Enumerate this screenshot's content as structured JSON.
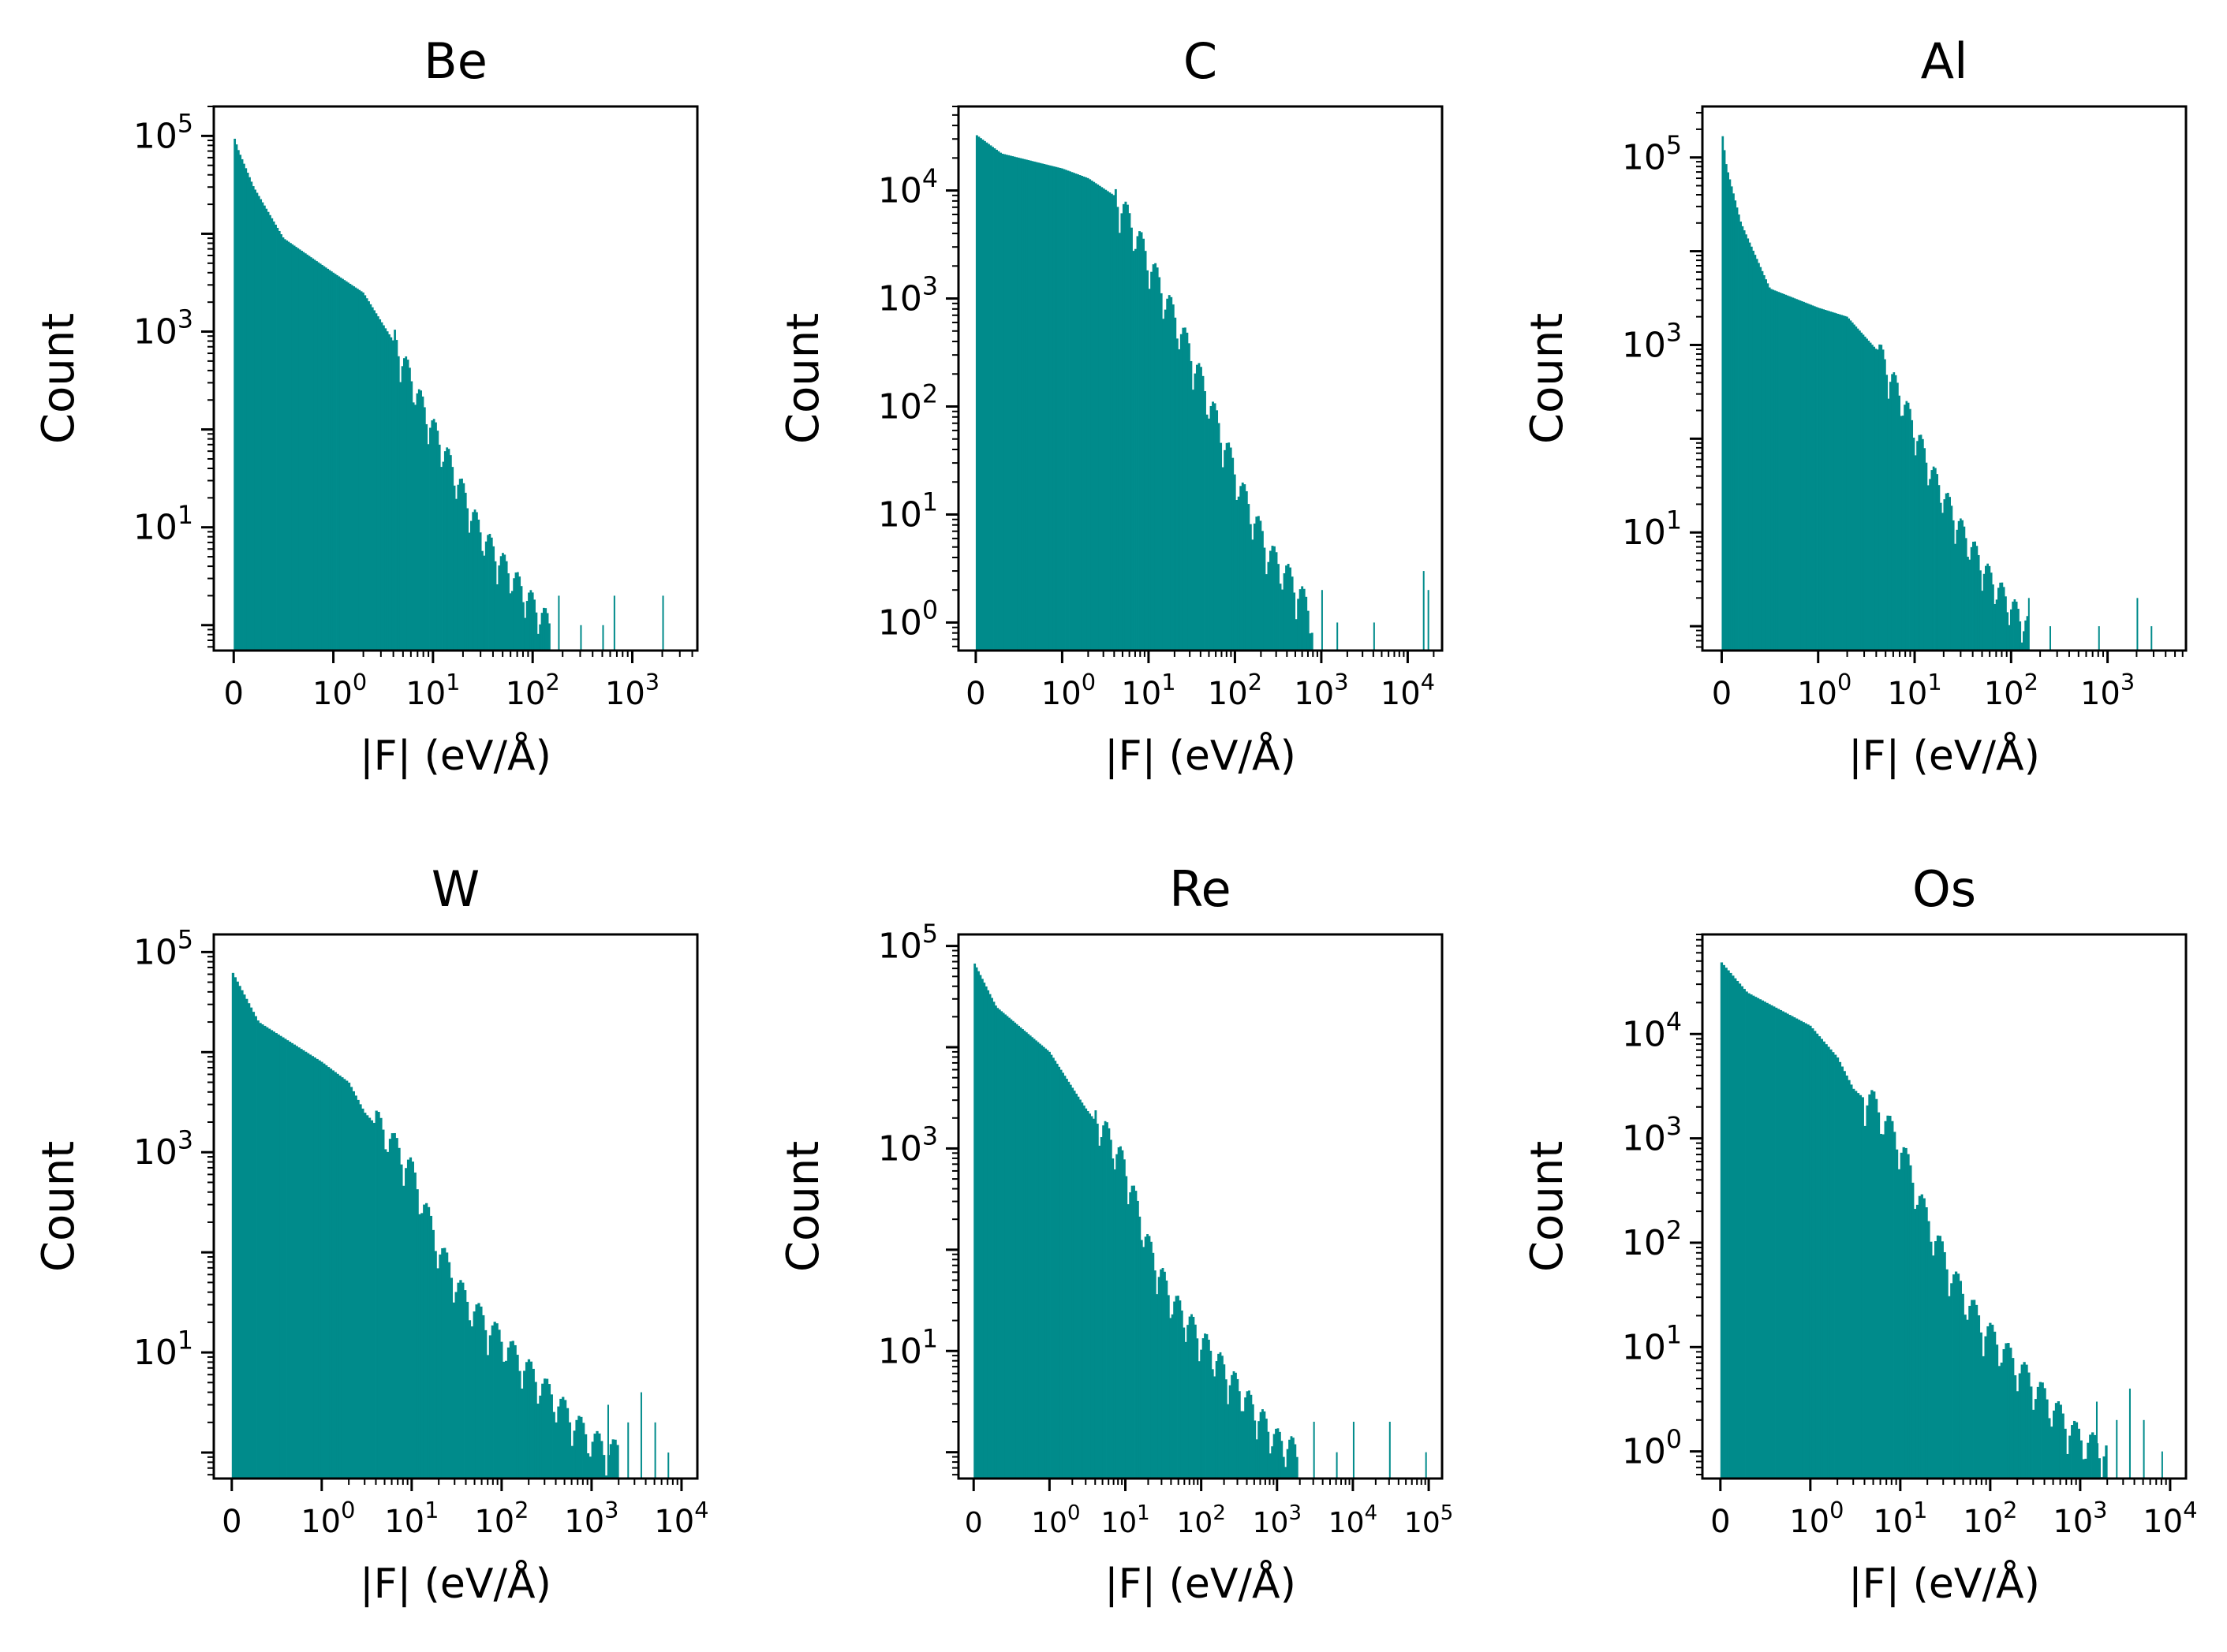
{
  "figure": {
    "bar_color": "#008b8b",
    "axis_color": "#000000"
  },
  "chart_data": [
    {
      "type": "bar",
      "title": "Be",
      "xlabel": "|F| (eV/Å)",
      "ylabel": "Count",
      "xscale": "symlog",
      "yscale": "log",
      "xlim": [
        -0.2,
        4500
      ],
      "ylim": [
        0.55,
        200000
      ],
      "xticks": [
        {
          "v": 0,
          "base": "0",
          "exp": ""
        },
        {
          "v": 1,
          "base": "10",
          "exp": "0"
        },
        {
          "v": 10,
          "base": "10",
          "exp": "1"
        },
        {
          "v": 100,
          "base": "10",
          "exp": "2"
        },
        {
          "v": 1000,
          "base": "10",
          "exp": "3"
        }
      ],
      "yticks": [
        {
          "v": 10,
          "base": "10",
          "exp": "1"
        },
        {
          "v": 1000,
          "base": "10",
          "exp": "3"
        },
        {
          "v": 100000,
          "base": "10",
          "exp": "5"
        }
      ],
      "profile": [
        [
          0,
          100000
        ],
        [
          0.05,
          70000
        ],
        [
          0.2,
          30000
        ],
        [
          0.5,
          9000
        ],
        [
          1,
          4000
        ],
        [
          2,
          2500
        ],
        [
          4,
          800
        ],
        [
          8,
          150
        ],
        [
          15,
          40
        ],
        [
          30,
          8
        ],
        [
          60,
          3
        ],
        [
          100,
          1.5
        ],
        [
          150,
          0.9
        ]
      ],
      "outliers": [
        [
          180,
          2
        ],
        [
          300,
          1
        ],
        [
          500,
          1
        ],
        [
          650,
          2
        ],
        [
          2000,
          2
        ]
      ]
    },
    {
      "type": "bar",
      "title": "C",
      "xlabel": "|F| (eV/Å)",
      "ylabel": "Count",
      "xscale": "symlog",
      "yscale": "log",
      "xlim": [
        -0.2,
        25000
      ],
      "ylim": [
        0.55,
        60000
      ],
      "xticks": [
        {
          "v": 0,
          "base": "0",
          "exp": ""
        },
        {
          "v": 1,
          "base": "10",
          "exp": "0"
        },
        {
          "v": 10,
          "base": "10",
          "exp": "1"
        },
        {
          "v": 100,
          "base": "10",
          "exp": "2"
        },
        {
          "v": 1000,
          "base": "10",
          "exp": "3"
        },
        {
          "v": 10000,
          "base": "10",
          "exp": "4"
        }
      ],
      "yticks": [
        {
          "v": 1,
          "base": "10",
          "exp": "0"
        },
        {
          "v": 10,
          "base": "10",
          "exp": "1"
        },
        {
          "v": 100,
          "base": "10",
          "exp": "2"
        },
        {
          "v": 1000,
          "base": "10",
          "exp": "3"
        },
        {
          "v": 10000,
          "base": "10",
          "exp": "4"
        }
      ],
      "profile": [
        [
          0,
          33000
        ],
        [
          0.3,
          22000
        ],
        [
          1,
          16000
        ],
        [
          2,
          13000
        ],
        [
          4,
          9000
        ],
        [
          8,
          3000
        ],
        [
          15,
          1000
        ],
        [
          30,
          300
        ],
        [
          60,
          70
        ],
        [
          120,
          15
        ],
        [
          250,
          4
        ],
        [
          500,
          2
        ],
        [
          800,
          1
        ]
      ],
      "outliers": [
        [
          1000,
          2
        ],
        [
          1500,
          1
        ],
        [
          4000,
          1
        ],
        [
          15000,
          3
        ],
        [
          17000,
          2
        ]
      ]
    },
    {
      "type": "bar",
      "title": "Al",
      "xlabel": "|F| (eV/Å)",
      "ylabel": "Count",
      "xscale": "symlog",
      "yscale": "log",
      "xlim": [
        -0.2,
        6500
      ],
      "ylim": [
        0.55,
        350000
      ],
      "xticks": [
        {
          "v": 0,
          "base": "0",
          "exp": ""
        },
        {
          "v": 1,
          "base": "10",
          "exp": "0"
        },
        {
          "v": 10,
          "base": "10",
          "exp": "1"
        },
        {
          "v": 100,
          "base": "10",
          "exp": "2"
        },
        {
          "v": 1000,
          "base": "10",
          "exp": "3"
        }
      ],
      "yticks": [
        {
          "v": 10,
          "base": "10",
          "exp": "1"
        },
        {
          "v": 1000,
          "base": "10",
          "exp": "3"
        },
        {
          "v": 100000,
          "base": "10",
          "exp": "5"
        }
      ],
      "profile": [
        [
          0,
          200000
        ],
        [
          0.05,
          80000
        ],
        [
          0.2,
          20000
        ],
        [
          0.5,
          4000
        ],
        [
          1,
          2500
        ],
        [
          2,
          2000
        ],
        [
          4,
          900
        ],
        [
          8,
          200
        ],
        [
          15,
          40
        ],
        [
          30,
          10
        ],
        [
          60,
          3
        ],
        [
          100,
          1.5
        ],
        [
          150,
          0.9
        ]
      ],
      "outliers": [
        [
          150,
          2
        ],
        [
          250,
          1
        ],
        [
          800,
          1
        ],
        [
          2000,
          2
        ],
        [
          2800,
          1
        ]
      ]
    },
    {
      "type": "bar",
      "title": "W",
      "xlabel": "|F| (eV/Å)",
      "ylabel": "Count",
      "xscale": "symlog",
      "yscale": "log",
      "xlim": [
        -0.2,
        15000
      ],
      "ylim": [
        0.55,
        150000
      ],
      "xticks": [
        {
          "v": 0,
          "base": "0",
          "exp": ""
        },
        {
          "v": 1,
          "base": "10",
          "exp": "0"
        },
        {
          "v": 10,
          "base": "10",
          "exp": "1"
        },
        {
          "v": 100,
          "base": "10",
          "exp": "2"
        },
        {
          "v": 1000,
          "base": "10",
          "exp": "3"
        },
        {
          "v": 10000,
          "base": "10",
          "exp": "4"
        }
      ],
      "yticks": [
        {
          "v": 10,
          "base": "10",
          "exp": "1"
        },
        {
          "v": 1000,
          "base": "10",
          "exp": "3"
        },
        {
          "v": 100000,
          "base": "10",
          "exp": "5"
        }
      ],
      "profile": [
        [
          0,
          65000
        ],
        [
          0.3,
          20000
        ],
        [
          1,
          8000
        ],
        [
          2,
          5000
        ],
        [
          3,
          2500
        ],
        [
          5,
          1500
        ],
        [
          10,
          600
        ],
        [
          20,
          100
        ],
        [
          40,
          30
        ],
        [
          80,
          15
        ],
        [
          150,
          8
        ],
        [
          300,
          4
        ],
        [
          600,
          2
        ],
        [
          1000,
          1.2
        ],
        [
          2000,
          0.9
        ]
      ],
      "outliers": [
        [
          1500,
          3
        ],
        [
          2500,
          2
        ],
        [
          3500,
          4
        ],
        [
          5000,
          2
        ],
        [
          7000,
          1
        ]
      ]
    },
    {
      "type": "bar",
      "title": "Re",
      "xlabel": "|F| (eV/Å)",
      "ylabel": "Count",
      "xscale": "symlog",
      "yscale": "log",
      "xlim": [
        -0.2,
        150000
      ],
      "ylim": [
        0.55,
        130000
      ],
      "xticks": [
        {
          "v": 0,
          "base": "0",
          "exp": ""
        },
        {
          "v": 1,
          "base": "10",
          "exp": "0"
        },
        {
          "v": 10,
          "base": "10",
          "exp": "1"
        },
        {
          "v": 100,
          "base": "10",
          "exp": "2"
        },
        {
          "v": 1000,
          "base": "10",
          "exp": "3"
        },
        {
          "v": 10000,
          "base": "10",
          "exp": "4"
        },
        {
          "v": 100000,
          "base": "10",
          "exp": "5"
        }
      ],
      "yticks": [
        {
          "v": 10,
          "base": "10",
          "exp": "1"
        },
        {
          "v": 1000,
          "base": "10",
          "exp": "3"
        },
        {
          "v": 100000,
          "base": "10",
          "exp": "5"
        }
      ],
      "profile": [
        [
          0,
          70000
        ],
        [
          0.3,
          25000
        ],
        [
          1,
          9000
        ],
        [
          2,
          4000
        ],
        [
          3,
          2500
        ],
        [
          5,
          1500
        ],
        [
          10,
          600
        ],
        [
          20,
          100
        ],
        [
          40,
          30
        ],
        [
          80,
          15
        ],
        [
          150,
          8
        ],
        [
          300,
          4
        ],
        [
          600,
          2
        ],
        [
          1000,
          1.2
        ],
        [
          2000,
          0.9
        ]
      ],
      "outliers": [
        [
          3000,
          2
        ],
        [
          6000,
          1
        ],
        [
          10000,
          2
        ],
        [
          30000,
          2
        ],
        [
          90000,
          1
        ]
      ]
    },
    {
      "type": "bar",
      "title": "Os",
      "xlabel": "|F| (eV/Å)",
      "ylabel": "Count",
      "xscale": "symlog",
      "yscale": "log",
      "xlim": [
        -0.2,
        15000
      ],
      "ylim": [
        0.55,
        90000
      ],
      "xticks": [
        {
          "v": 0,
          "base": "0",
          "exp": ""
        },
        {
          "v": 1,
          "base": "10",
          "exp": "0"
        },
        {
          "v": 10,
          "base": "10",
          "exp": "1"
        },
        {
          "v": 100,
          "base": "10",
          "exp": "2"
        },
        {
          "v": 1000,
          "base": "10",
          "exp": "3"
        },
        {
          "v": 10000,
          "base": "10",
          "exp": "4"
        }
      ],
      "yticks": [
        {
          "v": 1,
          "base": "10",
          "exp": "0"
        },
        {
          "v": 10,
          "base": "10",
          "exp": "1"
        },
        {
          "v": 100,
          "base": "10",
          "exp": "2"
        },
        {
          "v": 1000,
          "base": "10",
          "exp": "3"
        },
        {
          "v": 10000,
          "base": "10",
          "exp": "4"
        }
      ],
      "profile": [
        [
          0,
          50000
        ],
        [
          0.3,
          25000
        ],
        [
          1,
          12000
        ],
        [
          2,
          6000
        ],
        [
          3,
          3000
        ],
        [
          5,
          2000
        ],
        [
          10,
          800
        ],
        [
          20,
          150
        ],
        [
          40,
          40
        ],
        [
          80,
          15
        ],
        [
          150,
          8
        ],
        [
          300,
          4
        ],
        [
          600,
          2
        ],
        [
          1000,
          1.2
        ],
        [
          2000,
          0.9
        ]
      ],
      "outliers": [
        [
          1500,
          3
        ],
        [
          2500,
          2
        ],
        [
          3500,
          4
        ],
        [
          5000,
          2
        ],
        [
          8000,
          1
        ]
      ]
    }
  ]
}
